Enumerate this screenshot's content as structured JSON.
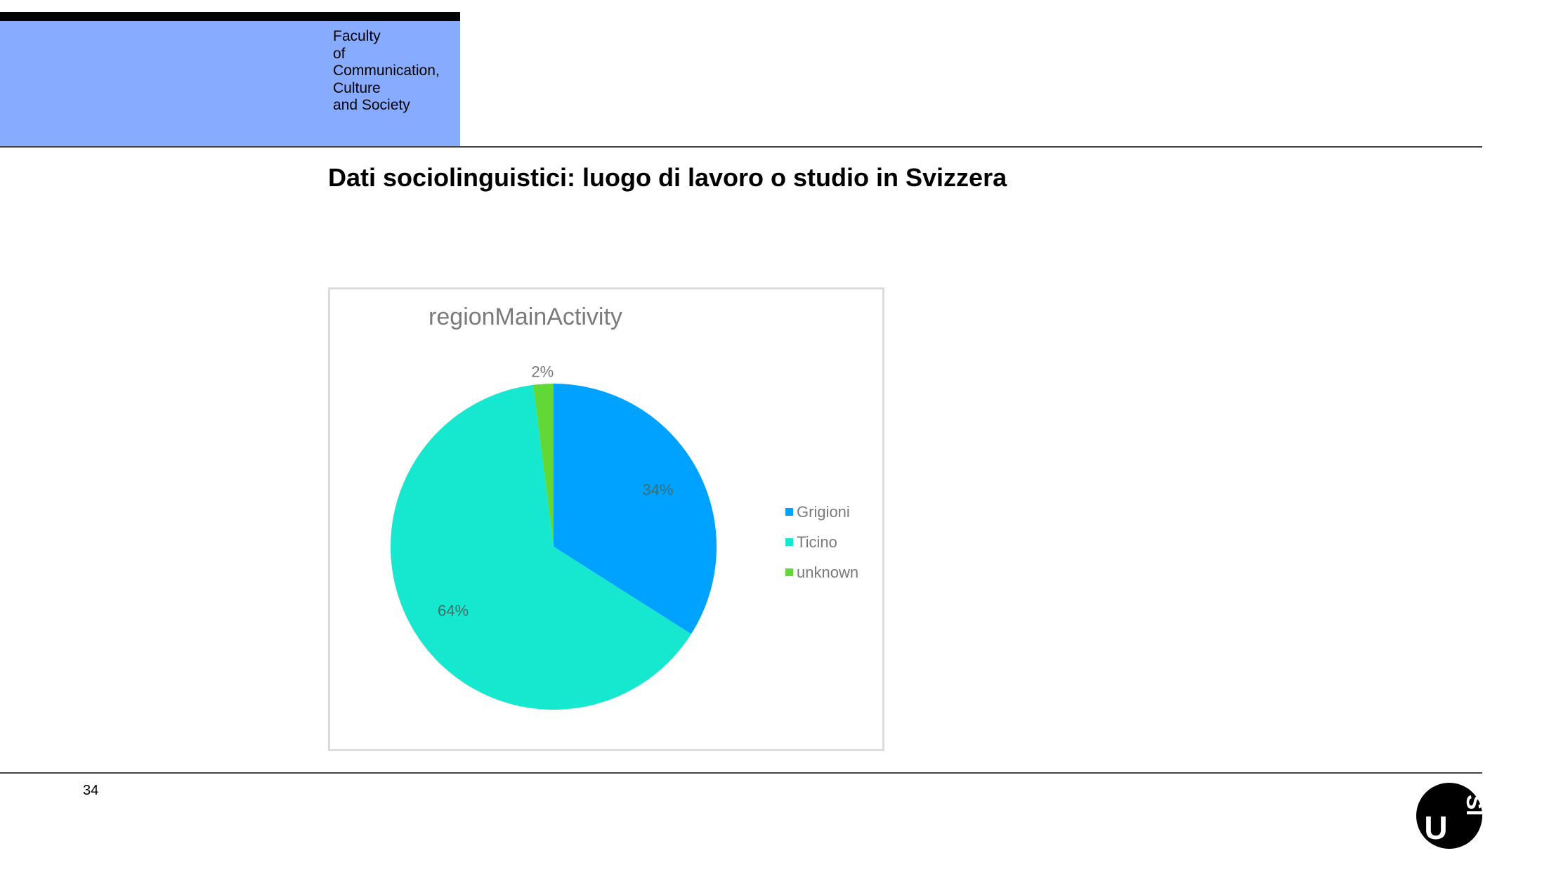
{
  "header": {
    "faculty_lines": [
      "Faculty",
      "of",
      "Communication,",
      "Culture",
      "and Society"
    ]
  },
  "slide": {
    "title": "Dati sociolinguistici: luogo di lavoro o studio in Svizzera",
    "page_number": "34"
  },
  "logo": {
    "letter_u": "U",
    "letters_si": "SI"
  },
  "colors": {
    "faculty_block": "#87acff",
    "grigioni": "#00a2ff",
    "ticino": "#16e7cf",
    "unknown": "#61d836"
  },
  "chart_data": {
    "type": "pie",
    "title": "regionMainActivity",
    "categories": [
      "Grigioni",
      "Ticino",
      "unknown"
    ],
    "values": [
      34,
      64,
      2
    ],
    "data_labels": [
      "34%",
      "64%",
      "2%"
    ],
    "legend_position": "right"
  }
}
